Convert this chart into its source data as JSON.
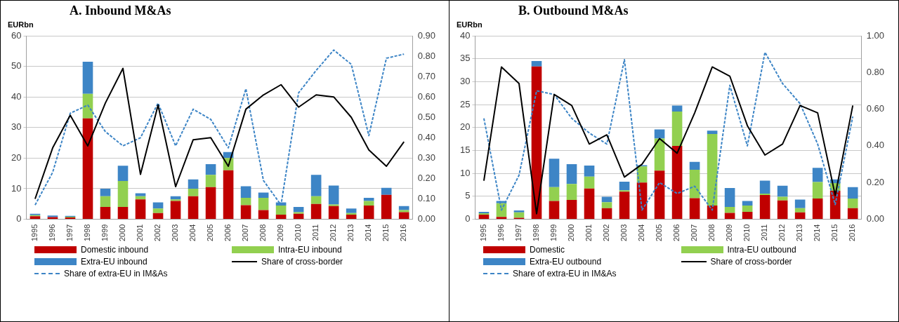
{
  "chart_data": [
    {
      "type": "bar",
      "title": "A.   Inbound M&As",
      "ylabel": "EURbn",
      "stacked": true,
      "grid": "y",
      "legend": "bottom",
      "marker": "none",
      "categories": [
        "1995",
        "1996",
        "1997",
        "1998",
        "1999",
        "2000",
        "2001",
        "2002",
        "2003",
        "2004",
        "2005",
        "2006",
        "2007",
        "2008",
        "2009",
        "2010",
        "2011",
        "2012",
        "2013",
        "2014",
        "2015",
        "2016"
      ],
      "ylim": [
        0,
        60
      ],
      "yticks": [
        0,
        10,
        20,
        30,
        40,
        50,
        60
      ],
      "y2lim": [
        0,
        0.9
      ],
      "y2ticks": [
        {
          "value": 0,
          "label": "0.00"
        },
        {
          "value": 0.1,
          "label": "0.10"
        },
        {
          "value": 0.2,
          "label": "0.20"
        },
        {
          "value": 0.3,
          "label": "0.30"
        },
        {
          "value": 0.4,
          "label": "0.40"
        },
        {
          "value": 0.5,
          "label": "0.50"
        },
        {
          "value": 0.6,
          "label": "0.60"
        },
        {
          "value": 0.7,
          "label": "0.70"
        },
        {
          "value": 0.8,
          "label": "0.80"
        },
        {
          "value": 0.9,
          "label": "0.90"
        }
      ],
      "series": [
        {
          "name": "Domestic inbound",
          "color": "#c00000",
          "values": [
            1,
            0.7,
            0.6,
            33,
            4,
            4,
            6.5,
            2,
            6,
            7.5,
            10.5,
            16,
            4.6,
            3,
            1.5,
            1.8,
            5,
            4.3,
            1.5,
            4.5,
            8,
            2.3
          ]
        },
        {
          "name": "Intra-EU inbound",
          "color": "#92d050",
          "values": [
            0.3,
            null,
            0.2,
            8,
            3.5,
            8.5,
            1,
            1.5,
            0.5,
            2.5,
            4,
            4,
            2.4,
            4,
            3,
            0.5,
            2.5,
            0.5,
            0.5,
            1.5,
            0,
            0.7
          ]
        },
        {
          "name": "Extra-EU inbound",
          "color": "#3d85c6",
          "values": [
            0.5,
            0.5,
            0.3,
            10.5,
            2.5,
            5,
            1,
            2,
            1,
            3,
            3.5,
            2,
            3.8,
            1.7,
            1,
            1.7,
            7,
            6.2,
            1.5,
            1,
            2.3,
            1.3
          ]
        },
        {
          "name": "Share of cross-border",
          "type": "line",
          "axis": "y2",
          "line_style": "solid",
          "color": "#000000",
          "values": [
            0.1,
            0.35,
            0.51,
            0.36,
            0.57,
            0.74,
            0.22,
            0.56,
            0.16,
            0.39,
            0.4,
            0.26,
            0.54,
            0.61,
            0.66,
            0.55,
            0.61,
            0.6,
            0.5,
            0.34,
            0.26,
            0.38
          ]
        },
        {
          "name": "Share of extra-EU in IM&As",
          "type": "line",
          "axis": "y2",
          "line_style": "dashed",
          "color": "#3d85c6",
          "values": [
            0.07,
            0.23,
            0.52,
            0.56,
            0.43,
            0.36,
            0.4,
            0.57,
            0.36,
            0.54,
            0.49,
            0.35,
            0.64,
            0.19,
            0.07,
            0.62,
            0.73,
            0.83,
            0.76,
            0.41,
            0.79,
            0.81
          ]
        }
      ]
    },
    {
      "type": "bar",
      "title": "B.   Outbound M&As",
      "ylabel": "EURbn",
      "stacked": true,
      "grid": "y",
      "legend": "bottom",
      "marker": "none",
      "categories": [
        "1995",
        "1996",
        "1997",
        "1998",
        "1999",
        "2000",
        "2001",
        "2002",
        "2003",
        "2004",
        "2005",
        "2006",
        "2007",
        "2008",
        "2009",
        "2010",
        "2011",
        "2012",
        "2013",
        "2014",
        "2015",
        "2016"
      ],
      "ylim": [
        0,
        40
      ],
      "yticks": [
        0,
        5,
        10,
        15,
        20,
        25,
        30,
        35,
        40
      ],
      "y2lim": [
        0,
        1
      ],
      "y2ticks": [
        {
          "value": 0,
          "label": "0.00"
        },
        {
          "value": 0.2,
          "label": "0.20"
        },
        {
          "value": 0.4,
          "label": "0.40"
        },
        {
          "value": 0.6,
          "label": "0.60"
        },
        {
          "value": 0.8,
          "label": "0.80"
        },
        {
          "value": 1,
          "label": "1.00"
        }
      ],
      "series": [
        {
          "name": "Domestic",
          "color": "#c00000",
          "values": [
            1,
            0.5,
            0.3,
            33.3,
            4,
            4.2,
            6.7,
            2.4,
            6,
            8,
            10.6,
            16,
            4.6,
            3,
            1.4,
            1.6,
            5.3,
            4.1,
            1.5,
            4.5,
            6.2,
            2.4
          ]
        },
        {
          "name": "Intra-EU outbound",
          "color": "#92d050",
          "values": [
            0.3,
            3,
            1.2,
            0,
            3,
            3.5,
            2.6,
            1.3,
            0.3,
            3.5,
            7,
            7.5,
            6.2,
            15.6,
            1.3,
            1.4,
            0.3,
            0.8,
            0.9,
            3.6,
            1.7,
            2.1
          ]
        },
        {
          "name": "Extra-EU outbound",
          "color": "#3d85c6",
          "values": [
            0.3,
            0.5,
            0.4,
            1.2,
            6.2,
            4.3,
            2.4,
            1.2,
            1.9,
            0.3,
            2,
            1.3,
            1.7,
            0.7,
            4.1,
            1,
            2.8,
            2.4,
            1.9,
            3.1,
            0.8,
            2.5
          ]
        },
        {
          "name": "Share of cross-border",
          "type": "line",
          "axis": "y2",
          "line_style": "solid",
          "color": "#000000",
          "values": [
            0.21,
            0.83,
            0.74,
            0.03,
            0.68,
            0.62,
            0.41,
            0.46,
            0.23,
            0.3,
            0.44,
            0.36,
            0.58,
            0.83,
            0.78,
            0.51,
            0.35,
            0.41,
            0.62,
            0.58,
            0.13,
            0.62
          ]
        },
        {
          "name": "Share of extra-EU in IM&As",
          "type": "line",
          "axis": "y2",
          "line_style": "dashed",
          "color": "#3d85c6",
          "values": [
            0.55,
            0.05,
            0.24,
            0.7,
            0.68,
            0.55,
            0.47,
            0.41,
            0.87,
            0.05,
            0.2,
            0.14,
            0.18,
            0.05,
            0.73,
            0.4,
            0.91,
            0.74,
            0.63,
            0.41,
            0.08,
            0.56
          ]
        }
      ]
    }
  ]
}
